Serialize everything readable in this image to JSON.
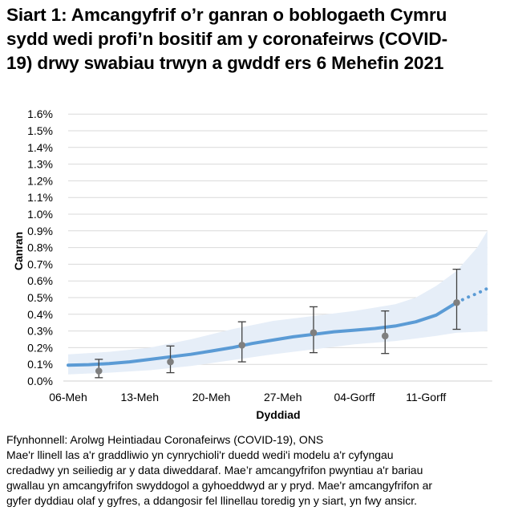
{
  "title_lines": [
    "Siart 1: Amcangyfrif o’r ganran o boblogaeth Cymru",
    "sydd wedi profi’n bositif am y coronafeirws (COVID-",
    "19) drwy swabiau trwyn a gwddf ers 6 Mehefin 2021"
  ],
  "footer": {
    "source": "Ffynhonnell: Arolwg Heintiadau Coronafeirws (COVID-19), ONS",
    "note_lines": [
      "Mae'r llinell las a'r graddliwio yn cynrychioli'r duedd wedi'i modelu a'r cyfyngau",
      "credadwy yn seiliedig ar y data diweddaraf. Mae’r amcangyfrifon pwyntiau a'r bariau",
      "gwallau yn amcangyfrifon swyddogol a gyhoeddwyd ar y pryd. Mae'r amcangyfrifon ar",
      "gyfer dyddiau olaf y gyfres, a ddangosir fel llinellau toredig yn y siart, yn fwy ansicr."
    ]
  },
  "colors": {
    "trend_line": "#5b9bd5",
    "band": "#e6eef8",
    "points": "#7f7f7f",
    "error_bars": "#404040",
    "gridlines": "#d9d9d9",
    "axis": "#d9d9d9"
  },
  "chart_data": {
    "type": "line",
    "title": "Siart 1: Amcangyfrif o’r ganran o boblogaeth Cymru sydd wedi profi’n bositif am y coronafeirws (COVID-19) drwy swabiau trwyn a gwddf ers 6 Mehefin 2021",
    "xlabel": "Dyddiad",
    "ylabel": "Canran",
    "ylim": [
      0,
      1.6
    ],
    "y_ticks": [
      "0.0%",
      "0.1%",
      "0.2%",
      "0.3%",
      "0.4%",
      "0.5%",
      "0.6%",
      "0.7%",
      "0.8%",
      "0.9%",
      "1.0%",
      "1.1%",
      "1.2%",
      "1.3%",
      "1.4%",
      "1.5%",
      "1.6%"
    ],
    "x_ticks": [
      {
        "label": "06-Meh",
        "day": 0
      },
      {
        "label": "13-Meh",
        "day": 7
      },
      {
        "label": "20-Meh",
        "day": 14
      },
      {
        "label": "27-Meh",
        "day": 21
      },
      {
        "label": "04-Gorff",
        "day": 28
      },
      {
        "label": "11-Gorff",
        "day": 35
      }
    ],
    "x_range_days": [
      0,
      41
    ],
    "grid": true,
    "legend": null,
    "series": [
      {
        "name": "Modelled trend (solid)",
        "style": "solid",
        "x_days": [
          0,
          2,
          4,
          6,
          8,
          10,
          12,
          14,
          16,
          18,
          20,
          22,
          24,
          26,
          28,
          30,
          32,
          34,
          36,
          38
        ],
        "values": [
          0.095,
          0.098,
          0.105,
          0.115,
          0.13,
          0.145,
          0.16,
          0.18,
          0.2,
          0.225,
          0.245,
          0.265,
          0.28,
          0.295,
          0.305,
          0.315,
          0.33,
          0.355,
          0.395,
          0.47
        ]
      },
      {
        "name": "Modelled trend (dotted, less certain)",
        "style": "dotted",
        "x_days": [
          38,
          39,
          40,
          41
        ],
        "values": [
          0.47,
          0.5,
          0.525,
          0.555
        ]
      },
      {
        "name": "Credible interval upper",
        "x_days": [
          0,
          4,
          8,
          12,
          16,
          20,
          24,
          28,
          32,
          34,
          36,
          38,
          40,
          41
        ],
        "values": [
          0.16,
          0.175,
          0.2,
          0.25,
          0.31,
          0.36,
          0.39,
          0.42,
          0.46,
          0.5,
          0.57,
          0.66,
          0.8,
          0.9
        ]
      },
      {
        "name": "Credible interval lower",
        "x_days": [
          0,
          4,
          8,
          12,
          16,
          20,
          24,
          28,
          32,
          34,
          36,
          38,
          40,
          41
        ],
        "values": [
          0.04,
          0.05,
          0.065,
          0.09,
          0.125,
          0.16,
          0.19,
          0.22,
          0.24,
          0.255,
          0.27,
          0.29,
          0.295,
          0.3
        ]
      }
    ],
    "point_estimates": [
      {
        "day": 3,
        "value": 0.06,
        "lower": 0.02,
        "upper": 0.13
      },
      {
        "day": 10,
        "value": 0.115,
        "lower": 0.05,
        "upper": 0.21
      },
      {
        "day": 17,
        "value": 0.215,
        "lower": 0.115,
        "upper": 0.355
      },
      {
        "day": 24,
        "value": 0.29,
        "lower": 0.17,
        "upper": 0.445
      },
      {
        "day": 31,
        "value": 0.27,
        "lower": 0.165,
        "upper": 0.42
      },
      {
        "day": 38,
        "value": 0.47,
        "lower": 0.31,
        "upper": 0.67
      }
    ]
  }
}
